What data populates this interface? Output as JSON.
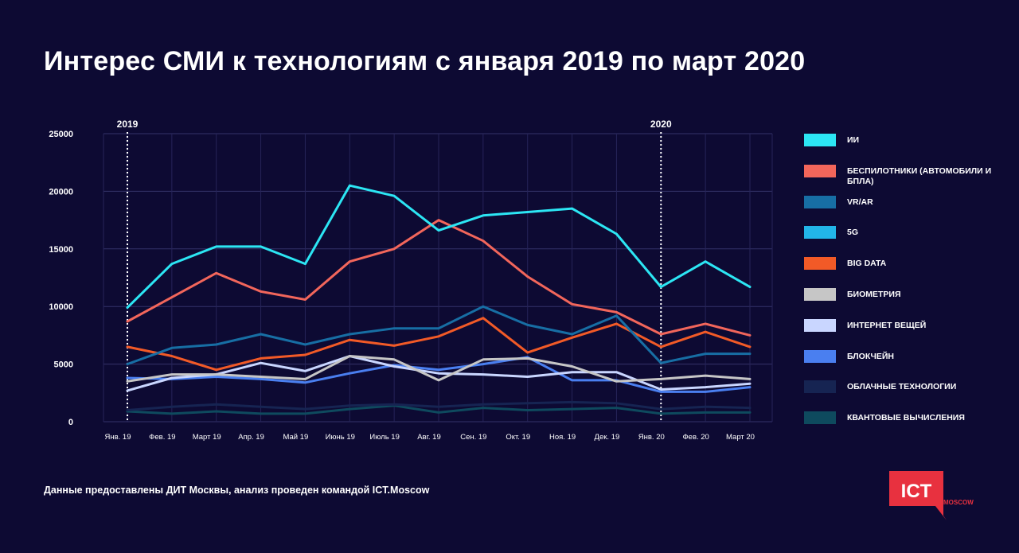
{
  "title": "Интерес СМИ к технологиям с января 2019 по март 2020",
  "source": "Данные предоставлены ДИТ Москвы, анализ проведен командой ICT.Moscow",
  "logo": {
    "main": "ICT",
    "sub": "MOSCOW",
    "color": "#e8313f"
  },
  "chart_data": {
    "type": "line",
    "categories": [
      "Янв. 19",
      "Фев. 19",
      "Март 19",
      "Апр. 19",
      "Май 19",
      "Июнь 19",
      "Июль 19",
      "Авг. 19",
      "Сен. 19",
      "Окт. 19",
      "Ноя. 19",
      "Дек. 19",
      "Янв. 20",
      "Фев. 20",
      "Март 20"
    ],
    "ylim": [
      0,
      25000
    ],
    "yticks": [
      0,
      5000,
      10000,
      15000,
      20000,
      25000
    ],
    "grid": true,
    "legend_position": "right",
    "year_markers": [
      {
        "label": "2019",
        "index": 0
      },
      {
        "label": "2020",
        "index": 12
      }
    ],
    "series": [
      {
        "name": "ИИ",
        "color": "#2ce6f4",
        "values": [
          9900,
          13700,
          15200,
          15200,
          13700,
          20500,
          19600,
          16600,
          17900,
          18200,
          18500,
          16300,
          11700,
          13900,
          11700
        ]
      },
      {
        "name": "Беспилотники (автомобили и БПЛА)",
        "color": "#f2665b",
        "values": [
          8700,
          10800,
          12900,
          11300,
          10600,
          13900,
          15000,
          17500,
          15700,
          12600,
          10200,
          9500,
          7600,
          8500,
          7500
        ]
      },
      {
        "name": "VR/AR",
        "color": "#176ea4",
        "values": [
          5000,
          6400,
          6700,
          7600,
          6700,
          7600,
          8100,
          8100,
          10000,
          8400,
          7600,
          9200,
          5100,
          5900,
          5900
        ]
      },
      {
        "name": "5G",
        "color": "#22b5e8",
        "values": [
          null,
          null,
          null,
          null,
          null,
          null,
          null,
          null,
          null,
          null,
          null,
          null,
          null,
          null,
          null
        ]
      },
      {
        "name": "Big Data",
        "color": "#f25a27",
        "values": [
          6500,
          5700,
          4500,
          5500,
          5800,
          7100,
          6600,
          7400,
          9000,
          6000,
          7300,
          8500,
          6500,
          7800,
          6500
        ]
      },
      {
        "name": "Биометрия",
        "color": "#c6c6c6",
        "values": [
          3500,
          4100,
          4100,
          3900,
          3700,
          5700,
          5400,
          3600,
          5400,
          5500,
          4800,
          3500,
          3700,
          4000,
          3700
        ]
      },
      {
        "name": "Интернет вещей",
        "color": "#c9d6ff",
        "values": [
          2700,
          3800,
          4100,
          5100,
          4400,
          5700,
          4800,
          4200,
          4100,
          3900,
          4300,
          4300,
          2800,
          3000,
          3300
        ]
      },
      {
        "name": "Блокчейн",
        "color": "#4a7ff0",
        "values": [
          3800,
          3700,
          3900,
          3700,
          3400,
          4200,
          4900,
          4500,
          5000,
          5600,
          3600,
          3600,
          2600,
          2600,
          3000
        ]
      },
      {
        "name": "Облачные технологии",
        "color": "#162452",
        "values": [
          1000,
          1300,
          1500,
          1300,
          1100,
          1400,
          1500,
          1300,
          1500,
          1600,
          1700,
          1600,
          1100,
          1300,
          1200
        ]
      },
      {
        "name": "Квантовые вычисления",
        "color": "#0e4a5e",
        "values": [
          900,
          700,
          900,
          700,
          700,
          1100,
          1400,
          800,
          1200,
          1000,
          1100,
          1200,
          700,
          800,
          800
        ]
      }
    ]
  }
}
